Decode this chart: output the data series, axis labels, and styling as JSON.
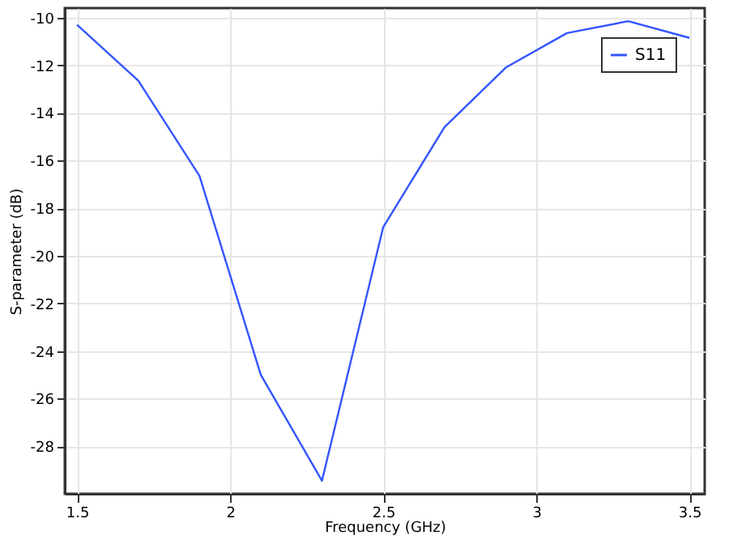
{
  "chart_data": {
    "type": "line",
    "xlabel": "Frequency (GHz)",
    "ylabel": "S-parameter (dB)",
    "x": [
      1.5,
      1.7,
      1.9,
      2.1,
      2.3,
      2.5,
      2.7,
      2.9,
      3.1,
      3.3,
      3.5
    ],
    "series": [
      {
        "name": "S11",
        "color": "#3355ff",
        "values": [
          -10.3,
          -12.65,
          -16.65,
          -25.0,
          -29.45,
          -18.8,
          -14.6,
          -12.1,
          -10.65,
          -10.15,
          -10.85
        ]
      }
    ],
    "xlim": [
      1.46,
      3.55
    ],
    "ylim": [
      -30.0,
      -9.6
    ],
    "xticks": [
      1.5,
      2,
      2.5,
      3,
      3.5
    ],
    "yticks": [
      -28,
      -26,
      -24,
      -22,
      -20,
      -18,
      -16,
      -14,
      -12,
      -10
    ],
    "grid": true,
    "legend": "top right",
    "marker": "none",
    "line_style": "solid"
  }
}
